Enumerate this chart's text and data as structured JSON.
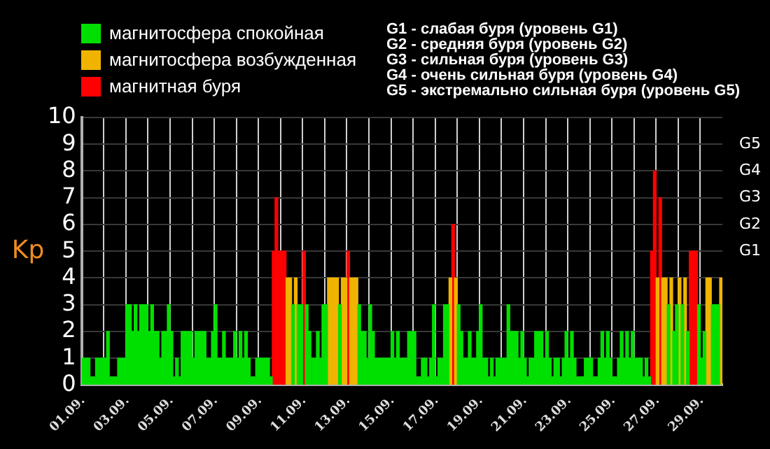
{
  "chart_data": {
    "type": "bar",
    "ylabel": "Kp",
    "stacked": true,
    "grid": true,
    "legend": "top left",
    "annotations": [
      "G1 - слабая буря (уровень G1)",
      "G2 - средняя буря (уровень G2)",
      "G3 - сильная буря (уровень G3)",
      "G4 - очень сильная буря (уровень G4)",
      "G5 - экстремально сильная буря (уровень G5)",
      "G5",
      "G4",
      "G3",
      "G2",
      "G1"
    ],
    "ylim": [
      0,
      10
    ],
    "yticks": [
      0,
      1,
      2,
      3,
      4,
      5,
      6,
      7,
      8,
      9,
      10
    ],
    "categories": [
      "01.09.",
      null,
      null,
      null,
      null,
      null,
      null,
      null,
      null,
      null,
      null,
      null,
      null,
      null,
      null,
      null,
      "03.09.",
      null,
      null,
      null,
      null,
      null,
      null,
      null,
      null,
      null,
      null,
      null,
      null,
      null,
      null,
      null,
      "05.09.",
      null,
      null,
      null,
      null,
      null,
      null,
      null,
      null,
      null,
      null,
      null,
      null,
      null,
      null,
      null,
      "07.09.",
      null,
      null,
      null,
      null,
      null,
      null,
      null,
      null,
      null,
      null,
      null,
      null,
      null,
      null,
      null,
      "09.09.",
      null,
      null,
      null,
      null,
      null,
      null,
      null,
      null,
      null,
      null,
      null,
      null,
      null,
      null,
      null,
      "11.09.",
      null,
      null,
      null,
      null,
      null,
      null,
      null,
      null,
      null,
      null,
      null,
      null,
      null,
      null,
      null,
      "13.09.",
      null,
      null,
      null,
      null,
      null,
      null,
      null,
      null,
      null,
      null,
      null,
      null,
      null,
      null,
      null,
      "15.09.",
      null,
      null,
      null,
      null,
      null,
      null,
      null,
      null,
      null,
      null,
      null,
      null,
      null,
      null,
      null,
      "17.09.",
      null,
      null,
      null,
      null,
      null,
      null,
      null,
      null,
      null,
      null,
      null,
      null,
      null,
      null,
      null,
      "19.09.",
      null,
      null,
      null,
      null,
      null,
      null,
      null,
      null,
      null,
      null,
      null,
      null,
      null,
      null,
      null,
      "21.09.",
      null,
      null,
      null,
      null,
      null,
      null,
      null,
      null,
      null,
      null,
      null,
      null,
      null,
      null,
      null,
      "23.09.",
      null,
      null,
      null,
      null,
      null,
      null,
      null,
      null,
      null,
      null,
      null,
      null,
      null,
      null,
      null,
      "25.09.",
      null,
      null,
      null,
      null,
      null,
      null,
      null,
      null,
      null,
      null,
      null,
      null,
      null,
      null,
      null,
      "27.09.",
      null,
      null,
      null,
      null,
      null,
      null,
      null,
      null,
      null,
      null,
      null,
      null,
      null,
      null,
      null,
      "29.09.",
      null,
      null,
      null,
      null,
      null,
      null,
      null
    ],
    "series": [
      {
        "name": "магнитосфера спокойная",
        "color": "#00e000",
        "values": [
          1,
          1,
          1,
          0.3,
          0.3,
          1,
          1,
          1,
          1,
          2,
          0.3,
          0.3,
          0.3,
          1,
          1,
          1,
          3,
          3,
          2,
          3,
          2,
          3,
          3,
          3,
          2,
          3,
          2,
          2,
          1,
          2,
          2,
          3,
          2,
          0.3,
          1,
          0.3,
          2,
          2,
          2,
          2,
          1,
          2,
          2,
          2,
          2,
          1,
          1,
          2,
          3,
          1,
          1,
          2,
          1,
          1,
          1,
          2,
          1,
          2,
          1,
          2,
          1,
          0.3,
          0.3,
          1,
          1,
          1,
          1,
          1,
          0.3,
          null,
          null,
          null,
          null,
          null,
          null,
          null,
          3,
          null,
          3,
          3,
          null,
          3,
          2,
          1,
          1,
          2,
          1,
          3,
          3,
          null,
          null,
          null,
          null,
          3,
          null,
          null,
          null,
          null,
          null,
          null,
          3,
          2,
          2,
          1,
          3,
          2,
          1,
          1,
          1,
          1,
          1,
          1,
          2,
          1,
          2,
          1,
          1,
          1,
          2,
          2,
          2,
          0.3,
          0.3,
          1,
          1,
          0.3,
          1,
          3,
          0.3,
          1,
          1,
          3,
          3,
          null,
          null,
          null,
          3,
          2,
          1,
          1,
          2,
          1,
          1,
          2,
          3,
          1,
          1,
          0.3,
          1,
          0.3,
          1,
          1,
          1,
          1,
          3,
          2,
          2,
          2,
          1,
          2,
          1,
          0.3,
          1,
          1,
          2,
          2,
          2,
          1,
          2,
          1,
          0.3,
          1,
          1,
          0.3,
          1,
          2,
          1,
          2,
          1,
          0.3,
          0.3,
          0.3,
          1,
          1,
          1,
          0.3,
          0.3,
          1,
          2,
          1,
          2,
          1,
          0.3,
          0.3,
          1,
          2,
          1,
          2,
          1,
          2,
          1,
          1,
          1,
          0.3,
          1,
          0.3,
          null,
          null,
          null,
          null,
          null,
          null,
          3,
          null,
          2,
          3,
          null,
          3,
          null,
          2,
          null,
          null,
          null,
          3,
          1,
          2,
          null,
          null,
          3,
          3,
          3,
          null
        ]
      },
      {
        "name": "магнитосфера возбужденная",
        "color": "#f0b400",
        "values": [
          null,
          null,
          null,
          null,
          null,
          null,
          null,
          null,
          null,
          null,
          null,
          null,
          null,
          null,
          null,
          null,
          null,
          null,
          null,
          null,
          null,
          null,
          null,
          null,
          null,
          null,
          null,
          null,
          null,
          null,
          null,
          null,
          null,
          null,
          null,
          null,
          null,
          null,
          null,
          null,
          null,
          null,
          null,
          null,
          null,
          null,
          null,
          null,
          null,
          null,
          null,
          null,
          null,
          null,
          null,
          null,
          null,
          null,
          null,
          null,
          null,
          null,
          null,
          null,
          null,
          null,
          null,
          null,
          null,
          null,
          null,
          null,
          null,
          null,
          4,
          4,
          null,
          4,
          null,
          null,
          null,
          null,
          null,
          null,
          null,
          null,
          null,
          null,
          null,
          4,
          4,
          4,
          4,
          null,
          4,
          4,
          null,
          4,
          4,
          4,
          null,
          null,
          null,
          null,
          null,
          null,
          null,
          null,
          null,
          null,
          null,
          null,
          null,
          null,
          null,
          null,
          null,
          null,
          null,
          null,
          null,
          null,
          null,
          null,
          null,
          null,
          null,
          null,
          null,
          null,
          null,
          null,
          null,
          4,
          null,
          4,
          null,
          null,
          null,
          null,
          null,
          null,
          null,
          null,
          null,
          null,
          null,
          null,
          null,
          null,
          null,
          null,
          null,
          null,
          null,
          null,
          null,
          null,
          null,
          null,
          null,
          null,
          null,
          null,
          null,
          null,
          null,
          null,
          null,
          null,
          null,
          null,
          null,
          null,
          null,
          null,
          null,
          null,
          null,
          null,
          null,
          null,
          null,
          null,
          null,
          null,
          null,
          null,
          null,
          null,
          null,
          null,
          null,
          null,
          null,
          null,
          null,
          null,
          null,
          null,
          null,
          null,
          null,
          null,
          null,
          null,
          null,
          null,
          4,
          null,
          4,
          4,
          null,
          4,
          null,
          null,
          4,
          null,
          4,
          null,
          null,
          null,
          null,
          null,
          null,
          null,
          4,
          4,
          null,
          null,
          null,
          4
        ]
      },
      {
        "name": "магнитная буря",
        "color": "#ff0000",
        "values": [
          null,
          null,
          null,
          null,
          null,
          null,
          null,
          null,
          null,
          null,
          null,
          null,
          null,
          null,
          null,
          null,
          null,
          null,
          null,
          null,
          null,
          null,
          null,
          null,
          null,
          null,
          null,
          null,
          null,
          null,
          null,
          null,
          null,
          null,
          null,
          null,
          null,
          null,
          null,
          null,
          null,
          null,
          null,
          null,
          null,
          null,
          null,
          null,
          null,
          null,
          null,
          null,
          null,
          null,
          null,
          null,
          null,
          null,
          null,
          null,
          null,
          null,
          null,
          null,
          null,
          null,
          null,
          null,
          null,
          5,
          7,
          5,
          5,
          5,
          null,
          null,
          null,
          null,
          null,
          null,
          5,
          null,
          null,
          null,
          null,
          null,
          null,
          null,
          null,
          null,
          null,
          null,
          null,
          null,
          null,
          null,
          5,
          null,
          null,
          null,
          null,
          null,
          null,
          null,
          null,
          null,
          null,
          null,
          null,
          null,
          null,
          null,
          null,
          null,
          null,
          null,
          null,
          null,
          null,
          null,
          null,
          null,
          null,
          null,
          null,
          null,
          null,
          null,
          null,
          null,
          null,
          null,
          null,
          null,
          6,
          null,
          null,
          null,
          null,
          null,
          null,
          null,
          null,
          null,
          null,
          null,
          null,
          null,
          null,
          null,
          null,
          null,
          null,
          null,
          null,
          null,
          null,
          null,
          null,
          null,
          null,
          null,
          null,
          null,
          null,
          null,
          null,
          null,
          null,
          null,
          null,
          null,
          null,
          null,
          null,
          null,
          null,
          null,
          null,
          null,
          null,
          null,
          null,
          null,
          null,
          null,
          null,
          null,
          null,
          null,
          null,
          null,
          null,
          null,
          null,
          null,
          null,
          null,
          null,
          null,
          null,
          null,
          null,
          null,
          null,
          null,
          5,
          8,
          null,
          7,
          null,
          null,
          null,
          null,
          null,
          null,
          null,
          null,
          null,
          null,
          5,
          5,
          5,
          null,
          null,
          null,
          null,
          null,
          null,
          null,
          null,
          null
        ]
      }
    ]
  }
}
